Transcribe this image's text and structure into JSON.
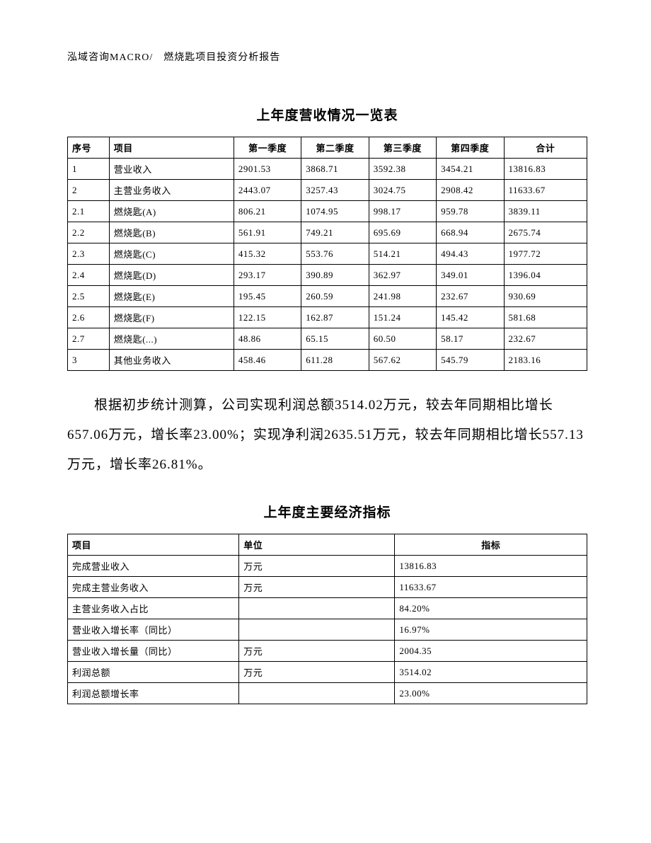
{
  "header": "泓域咨询MACRO/　燃烧匙项目投资分析报告",
  "table1": {
    "title": "上年度营收情况一览表",
    "title_fontsize": 19,
    "title_weight": "bold",
    "border_color": "#000000",
    "font_size": 13,
    "columns": [
      "序号",
      "项目",
      "第一季度",
      "第二季度",
      "第三季度",
      "第四季度",
      "合计"
    ],
    "column_align": [
      "left",
      "left",
      "center",
      "center",
      "center",
      "center",
      "center"
    ],
    "column_widths_pct": [
      8,
      24,
      13,
      13,
      13,
      13,
      16
    ],
    "rows": [
      [
        "1",
        "营业收入",
        "2901.53",
        "3868.71",
        "3592.38",
        "3454.21",
        "13816.83"
      ],
      [
        "2",
        "主营业务收入",
        "2443.07",
        "3257.43",
        "3024.75",
        "2908.42",
        "11633.67"
      ],
      [
        "2.1",
        "燃烧匙(A)",
        "806.21",
        "1074.95",
        "998.17",
        "959.78",
        "3839.11"
      ],
      [
        "2.2",
        "燃烧匙(B)",
        "561.91",
        "749.21",
        "695.69",
        "668.94",
        "2675.74"
      ],
      [
        "2.3",
        "燃烧匙(C)",
        "415.32",
        "553.76",
        "514.21",
        "494.43",
        "1977.72"
      ],
      [
        "2.4",
        "燃烧匙(D)",
        "293.17",
        "390.89",
        "362.97",
        "349.01",
        "1396.04"
      ],
      [
        "2.5",
        "燃烧匙(E)",
        "195.45",
        "260.59",
        "241.98",
        "232.67",
        "930.69"
      ],
      [
        "2.6",
        "燃烧匙(F)",
        "122.15",
        "162.87",
        "151.24",
        "145.42",
        "581.68"
      ],
      [
        "2.7",
        "燃烧匙(...)",
        "48.86",
        "65.15",
        "60.50",
        "58.17",
        "232.67"
      ],
      [
        "3",
        "其他业务收入",
        "458.46",
        "611.28",
        "567.62",
        "545.79",
        "2183.16"
      ]
    ]
  },
  "paragraph": "根据初步统计测算，公司实现利润总额3514.02万元，较去年同期相比增长657.06万元，增长率23.00%；实现净利润2635.51万元，较去年同期相比增长557.13万元，增长率26.81%。",
  "paragraph_fontsize": 19,
  "paragraph_line_height": 2.2,
  "paragraph_indent_em": 2,
  "table2": {
    "title": "上年度主要经济指标",
    "title_fontsize": 19,
    "title_weight": "bold",
    "border_color": "#000000",
    "font_size": 13,
    "columns": [
      "项目",
      "单位",
      "指标"
    ],
    "column_align": [
      "left",
      "left",
      "center"
    ],
    "column_widths_pct": [
      33,
      30,
      37
    ],
    "rows": [
      [
        "完成营业收入",
        "万元",
        "13816.83"
      ],
      [
        "完成主营业务收入",
        "万元",
        "11633.67"
      ],
      [
        "主营业务收入占比",
        "",
        "84.20%"
      ],
      [
        "营业收入增长率（同比）",
        "",
        "16.97%"
      ],
      [
        "营业收入增长量（同比）",
        "万元",
        "2004.35"
      ],
      [
        "利润总额",
        "万元",
        "3514.02"
      ],
      [
        "利润总额增长率",
        "",
        "23.00%"
      ]
    ]
  },
  "page_bg": "#ffffff",
  "text_color": "#000000",
  "font_family": "SimSun"
}
